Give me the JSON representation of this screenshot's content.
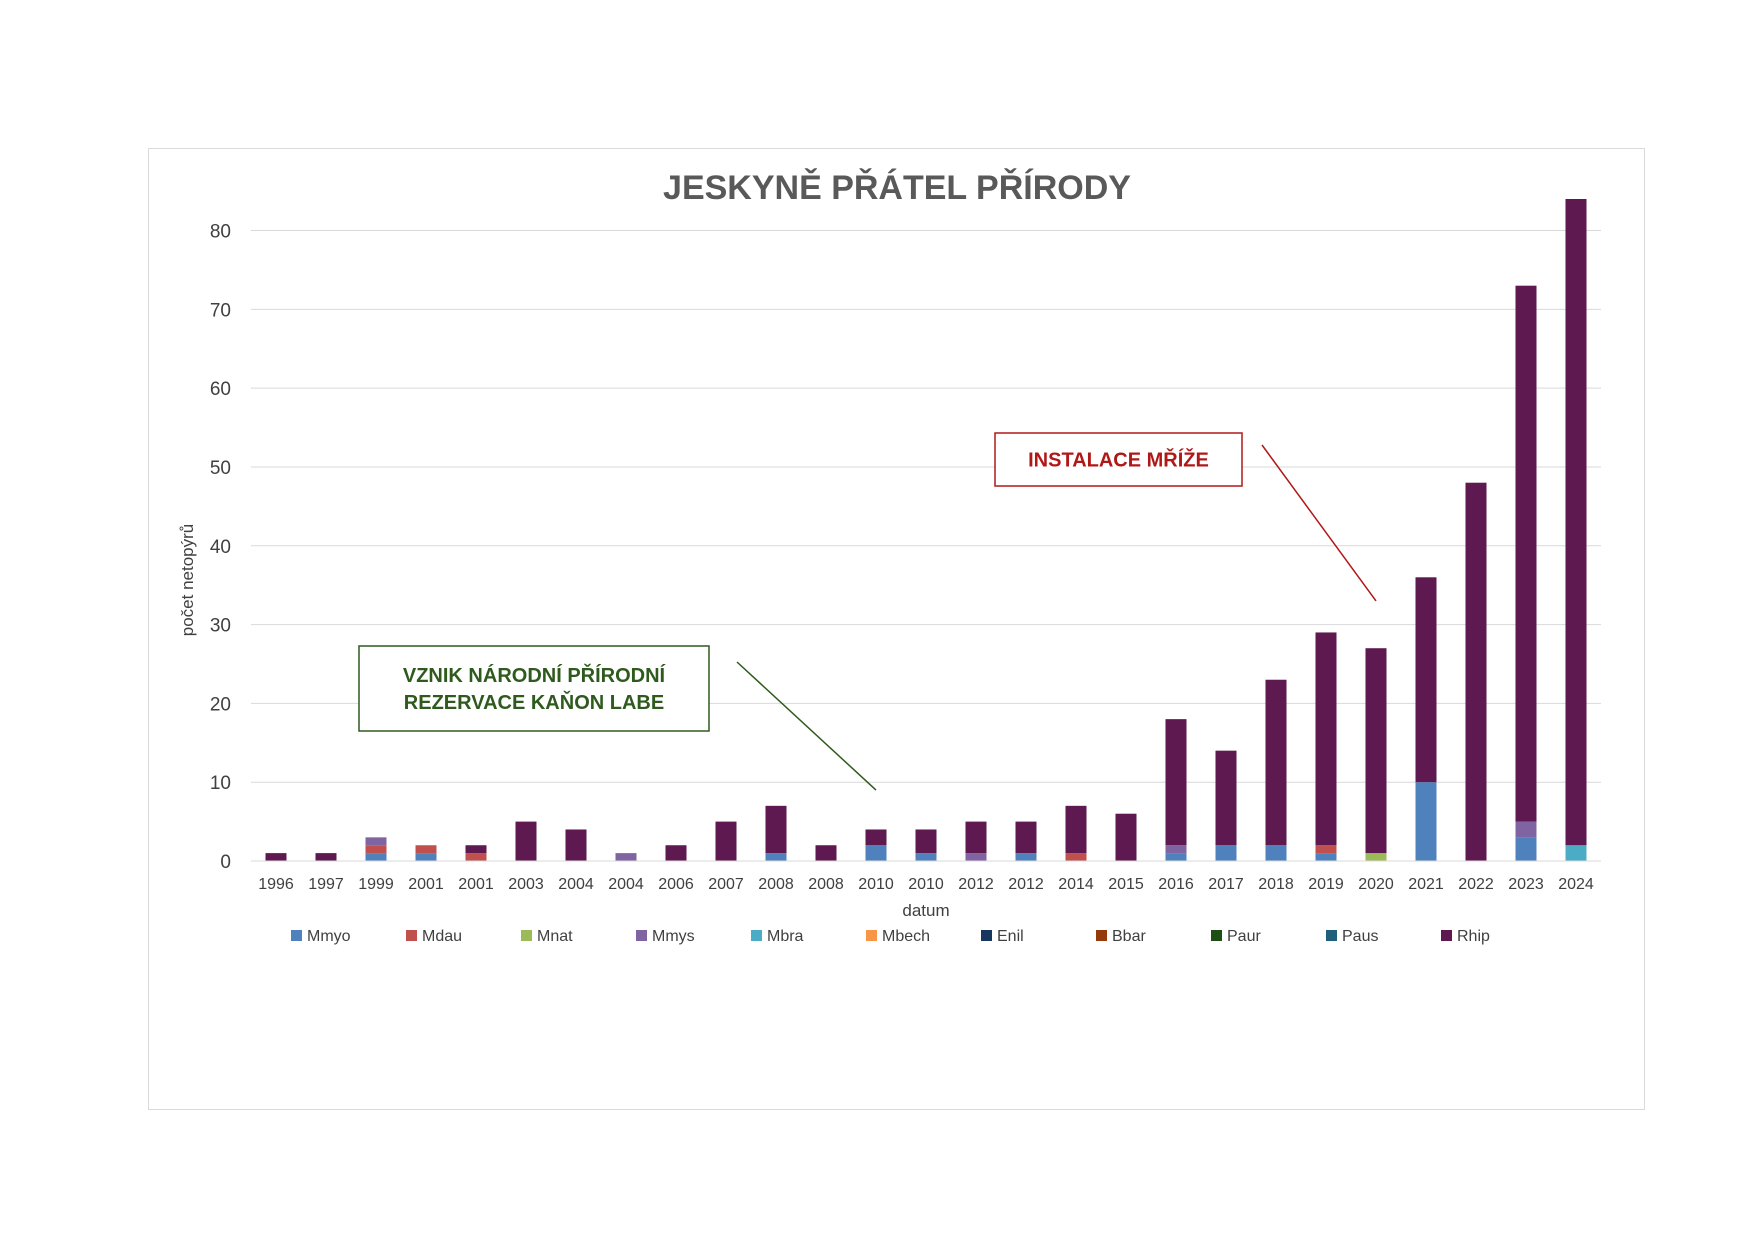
{
  "chart_data": {
    "type": "bar",
    "stacked": true,
    "title": "JESKYNĚ PŘÁTEL PŘÍRODY",
    "xlabel": "datum",
    "ylabel": "počet netopýrů",
    "ylim": [
      0,
      84
    ],
    "yticks": [
      0,
      10,
      20,
      30,
      40,
      50,
      60,
      70,
      80
    ],
    "grid": true,
    "legend_position": "bottom",
    "categories": [
      "1996",
      "1997",
      "1999",
      "2001",
      "2001",
      "2003",
      "2004",
      "2004",
      "2006",
      "2007",
      "2008",
      "2008",
      "2010",
      "2010",
      "2012",
      "2012",
      "2014",
      "2015",
      "2016",
      "2017",
      "2018",
      "2019",
      "2020",
      "2021",
      "2022",
      "2023",
      "2024"
    ],
    "series": [
      {
        "name": "Mmyo",
        "color": "#4f81bd",
        "values": [
          0,
          0,
          1,
          1,
          0,
          0,
          0,
          0,
          0,
          0,
          1,
          0,
          2,
          1,
          0,
          1,
          0,
          0,
          1,
          2,
          2,
          1,
          0,
          10,
          0,
          3,
          0
        ]
      },
      {
        "name": "Mdau",
        "color": "#c0504d",
        "values": [
          0,
          0,
          1,
          1,
          1,
          0,
          0,
          0,
          0,
          0,
          0,
          0,
          0,
          0,
          0,
          0,
          1,
          0,
          0,
          0,
          0,
          1,
          0,
          0,
          0,
          0,
          0
        ]
      },
      {
        "name": "Mnat",
        "color": "#9bbb59",
        "values": [
          0,
          0,
          0,
          0,
          0,
          0,
          0,
          0,
          0,
          0,
          0,
          0,
          0,
          0,
          0,
          0,
          0,
          0,
          0,
          0,
          0,
          0,
          1,
          0,
          0,
          0,
          0
        ]
      },
      {
        "name": "Mmys",
        "color": "#8064a2",
        "values": [
          0,
          0,
          1,
          0,
          0,
          0,
          0,
          1,
          0,
          0,
          0,
          0,
          0,
          0,
          1,
          0,
          0,
          0,
          1,
          0,
          0,
          0,
          0,
          0,
          0,
          2,
          0
        ]
      },
      {
        "name": "Mbra",
        "color": "#4bacc6",
        "values": [
          0,
          0,
          0,
          0,
          0,
          0,
          0,
          0,
          0,
          0,
          0,
          0,
          0,
          0,
          0,
          0,
          0,
          0,
          0,
          0,
          0,
          0,
          0,
          0,
          0,
          0,
          2
        ]
      },
      {
        "name": "Mbech",
        "color": "#f79646",
        "values": [
          0,
          0,
          0,
          0,
          0,
          0,
          0,
          0,
          0,
          0,
          0,
          0,
          0,
          0,
          0,
          0,
          0,
          0,
          0,
          0,
          0,
          0,
          0,
          0,
          0,
          0,
          0
        ]
      },
      {
        "name": "Enil",
        "color": "#17375e",
        "values": [
          0,
          0,
          0,
          0,
          0,
          0,
          0,
          0,
          0,
          0,
          0,
          0,
          0,
          0,
          0,
          0,
          0,
          0,
          0,
          0,
          0,
          0,
          0,
          0,
          0,
          0,
          0
        ]
      },
      {
        "name": "Bbar",
        "color": "#953a0c",
        "values": [
          0,
          0,
          0,
          0,
          0,
          0,
          0,
          0,
          0,
          0,
          0,
          0,
          0,
          0,
          0,
          0,
          0,
          0,
          0,
          0,
          0,
          0,
          0,
          0,
          0,
          0,
          0
        ]
      },
      {
        "name": "Paur",
        "color": "#1e4d16",
        "values": [
          0,
          0,
          0,
          0,
          0,
          0,
          0,
          0,
          0,
          0,
          0,
          0,
          0,
          0,
          0,
          0,
          0,
          0,
          0,
          0,
          0,
          0,
          0,
          0,
          0,
          0,
          0
        ]
      },
      {
        "name": "Paus",
        "color": "#1f5f7a",
        "values": [
          0,
          0,
          0,
          0,
          0,
          0,
          0,
          0,
          0,
          0,
          0,
          0,
          0,
          0,
          0,
          0,
          0,
          0,
          0,
          0,
          0,
          0,
          0,
          0,
          0,
          0,
          0
        ]
      },
      {
        "name": "Rhip",
        "color": "#5e1a50",
        "values": [
          1,
          1,
          0,
          0,
          1,
          5,
          4,
          0,
          2,
          5,
          6,
          2,
          2,
          3,
          4,
          4,
          6,
          6,
          16,
          12,
          21,
          27,
          26,
          26,
          48,
          68,
          82
        ]
      }
    ],
    "annotations": [
      {
        "id": "reserve",
        "lines": [
          "VZNIK NÁRODNÍ PŘÍRODNÍ",
          "REZERVACE KAŇON LABE"
        ],
        "color": "#2f5a1e",
        "points_to_category_index": 12,
        "points_to_value": 9
      },
      {
        "id": "grate",
        "lines": [
          "INSTALACE MŘÍŽE"
        ],
        "color": "#b01818",
        "points_to_category_index": 22,
        "points_to_value": 33
      }
    ]
  }
}
